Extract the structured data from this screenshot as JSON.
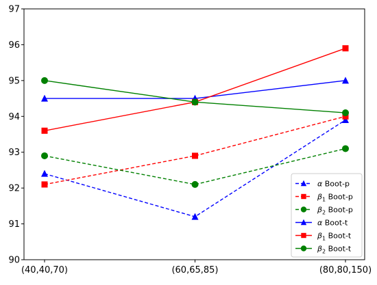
{
  "chart_data": {
    "type": "line",
    "categories": [
      "(40,40,70)",
      "(60,65,85)",
      "(80,80,150)"
    ],
    "ylim": [
      90,
      97
    ],
    "y_ticks": [
      90,
      91,
      92,
      93,
      94,
      95,
      96,
      97
    ],
    "grid": false,
    "legend_position": "lower-right",
    "series": [
      {
        "name": "α Boot-p",
        "name_sub": "",
        "values": [
          92.4,
          91.2,
          93.9
        ],
        "color": "#0000ff",
        "marker": "triangle",
        "style": "dashed"
      },
      {
        "name": "β₁ Boot-p",
        "name_sub": "1",
        "values": [
          92.1,
          92.9,
          94.0
        ],
        "color": "#ff0000",
        "marker": "square",
        "style": "dashed"
      },
      {
        "name": "β₂ Boot-p",
        "name_sub": "2",
        "values": [
          92.9,
          92.1,
          93.1
        ],
        "color": "#008000",
        "marker": "circle",
        "style": "dashed"
      },
      {
        "name": "α Boot-t",
        "name_sub": "",
        "values": [
          94.5,
          94.5,
          95.0
        ],
        "color": "#0000ff",
        "marker": "triangle",
        "style": "solid"
      },
      {
        "name": "β₁ Boot-t",
        "name_sub": "1",
        "values": [
          93.6,
          94.4,
          95.9
        ],
        "color": "#ff0000",
        "marker": "square",
        "style": "solid"
      },
      {
        "name": "β₂ Boot-t",
        "name_sub": "2",
        "values": [
          95.0,
          94.4,
          94.1
        ],
        "color": "#008000",
        "marker": "circle",
        "style": "solid"
      }
    ]
  }
}
